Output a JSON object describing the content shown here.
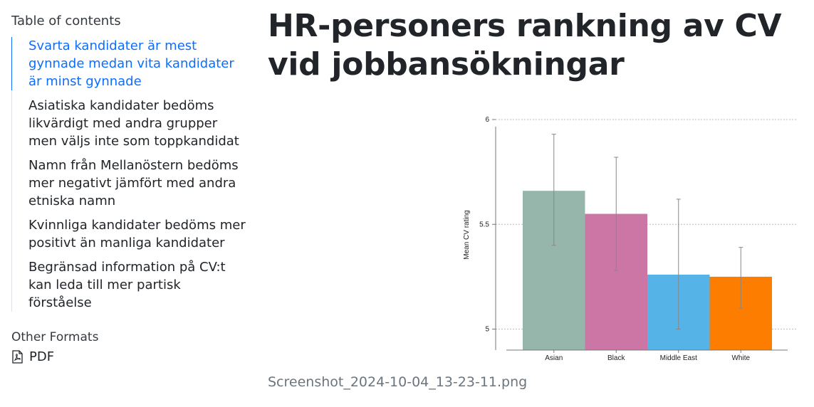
{
  "sidebar": {
    "toc_title": "Table of contents",
    "items": [
      {
        "label": "Svarta kandidater är mest gynnade medan vita kandidater är minst gynnade",
        "active": true
      },
      {
        "label": "Asiatiska kandidater bedöms likvärdigt med andra grupper men väljs inte som toppkandidat"
      },
      {
        "label": "Namn från Mellanöstern bedöms mer negativt jämfört med andra etniska namn"
      },
      {
        "label": "Kvinnliga kandidater bedöms mer positivt än manliga kandidater"
      },
      {
        "label": "Begränsad information på CV:t kan leda till mer partisk förståelse"
      }
    ],
    "other_formats_title": "Other Formats",
    "pdf_label": "PDF",
    "pdf_icon": "file-pdf-icon"
  },
  "main": {
    "title": "HR-personers rankning av CV vid jobbansökningar",
    "caption": "Screenshot_2024-10-04_13-23-11.png"
  },
  "chart_data": {
    "type": "bar",
    "categories": [
      "Asian",
      "Black",
      "Middle East",
      "White"
    ],
    "values": [
      5.66,
      5.55,
      5.26,
      5.25
    ],
    "error_low": [
      5.4,
      5.28,
      5.0,
      5.1
    ],
    "error_high": [
      5.93,
      5.82,
      5.62,
      5.39
    ],
    "colors": [
      "#96b5ab",
      "#cb76a5",
      "#56b3e7",
      "#fd7d01"
    ],
    "ylabel": "Mean CV rating",
    "ylim": [
      4.9,
      6.0
    ],
    "yticks": [
      "5",
      "5.5",
      "6"
    ],
    "grid": "horizontal dotted"
  }
}
